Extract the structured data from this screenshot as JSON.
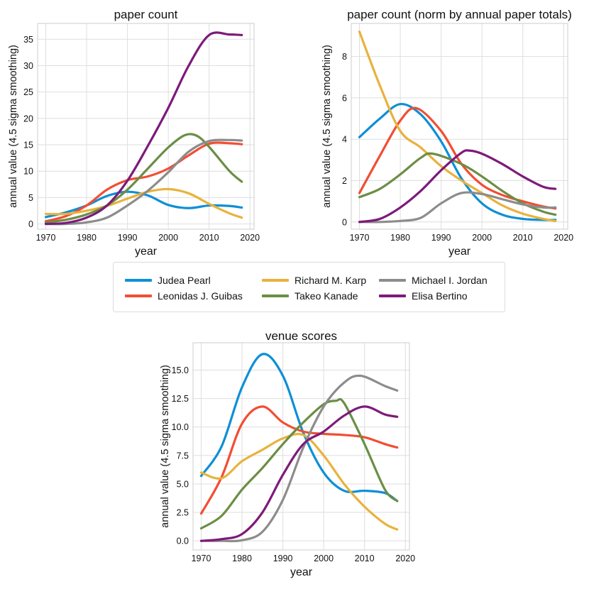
{
  "figure": {
    "legend": [
      {
        "name": "Judea Pearl",
        "color": "#0d8fd6"
      },
      {
        "name": "Leonidas J. Guibas",
        "color": "#f24d33"
      },
      {
        "name": "Richard M. Karp",
        "color": "#e8b23c"
      },
      {
        "name": "Takeo Kanade",
        "color": "#6b8e45"
      },
      {
        "name": "Michael I. Jordan",
        "color": "#8c8c8c"
      },
      {
        "name": "Elisa Bertino",
        "color": "#7d1a7a"
      }
    ]
  },
  "chart_data": [
    {
      "type": "line",
      "title": "paper count",
      "xlabel": "year",
      "ylabel": "annual value (4.5 sigma smoothing)",
      "xlim": [
        1968,
        2021
      ],
      "ylim": [
        -1,
        38
      ],
      "xticks": [
        1970,
        1980,
        1990,
        2000,
        2010,
        2020
      ],
      "yticks": [
        0,
        5,
        10,
        15,
        20,
        25,
        30,
        35
      ],
      "ytick_labels": [
        "0",
        "5",
        "10",
        "15",
        "20",
        "25",
        "30",
        "35"
      ],
      "series": [
        {
          "name": "Judea Pearl",
          "color": "#0d8fd6",
          "points": [
            [
              1970,
              1.3
            ],
            [
              1975,
              2.2
            ],
            [
              1980,
              3.5
            ],
            [
              1985,
              5.3
            ],
            [
              1990,
              6.1
            ],
            [
              1995,
              5.4
            ],
            [
              2000,
              3.6
            ],
            [
              2005,
              3.0
            ],
            [
              2010,
              3.5
            ],
            [
              2015,
              3.4
            ],
            [
              2018,
              3.1
            ]
          ]
        },
        {
          "name": "Leonidas J. Guibas",
          "color": "#f24d33",
          "points": [
            [
              1970,
              0.5
            ],
            [
              1975,
              1.5
            ],
            [
              1980,
              3.5
            ],
            [
              1985,
              6.5
            ],
            [
              1990,
              8.3
            ],
            [
              1995,
              9.0
            ],
            [
              2000,
              10.5
            ],
            [
              2005,
              13.0
            ],
            [
              2010,
              15.2
            ],
            [
              2015,
              15.3
            ],
            [
              2018,
              15.1
            ]
          ]
        },
        {
          "name": "Richard M. Karp",
          "color": "#e8b23c",
          "points": [
            [
              1970,
              1.9
            ],
            [
              1975,
              1.9
            ],
            [
              1980,
              2.5
            ],
            [
              1985,
              3.4
            ],
            [
              1990,
              4.8
            ],
            [
              1995,
              6.1
            ],
            [
              2000,
              6.6
            ],
            [
              2005,
              5.8
            ],
            [
              2010,
              3.8
            ],
            [
              2015,
              2.0
            ],
            [
              2018,
              1.2
            ]
          ]
        },
        {
          "name": "Takeo Kanade",
          "color": "#6b8e45",
          "points": [
            [
              1970,
              0.3
            ],
            [
              1975,
              0.8
            ],
            [
              1980,
              1.8
            ],
            [
              1985,
              3.5
            ],
            [
              1990,
              6.5
            ],
            [
              1995,
              10.5
            ],
            [
              2000,
              14.5
            ],
            [
              2004,
              16.8
            ],
            [
              2007,
              16.7
            ],
            [
              2010,
              14.6
            ],
            [
              2015,
              10.0
            ],
            [
              2018,
              8.0
            ]
          ]
        },
        {
          "name": "Michael I. Jordan",
          "color": "#8c8c8c",
          "points": [
            [
              1970,
              0.0
            ],
            [
              1975,
              0.0
            ],
            [
              1980,
              0.3
            ],
            [
              1985,
              1.2
            ],
            [
              1990,
              3.5
            ],
            [
              1995,
              6.3
            ],
            [
              2000,
              9.8
            ],
            [
              2005,
              13.7
            ],
            [
              2010,
              15.7
            ],
            [
              2015,
              15.9
            ],
            [
              2018,
              15.8
            ]
          ]
        },
        {
          "name": "Elisa Bertino",
          "color": "#7d1a7a",
          "points": [
            [
              1970,
              0.0
            ],
            [
              1975,
              0.2
            ],
            [
              1980,
              1.2
            ],
            [
              1985,
              3.5
            ],
            [
              1990,
              8.2
            ],
            [
              1995,
              14.8
            ],
            [
              2000,
              22.0
            ],
            [
              2005,
              30.0
            ],
            [
              2010,
              35.8
            ],
            [
              2015,
              35.9
            ],
            [
              2018,
              35.8
            ]
          ]
        }
      ]
    },
    {
      "type": "line",
      "title": "paper count (norm by annual paper totals)",
      "xlabel": "year",
      "ylabel": "annual value (4.5 sigma smoothing)",
      "xlim": [
        1968,
        2021
      ],
      "ylim": [
        -0.35,
        9.6
      ],
      "xticks": [
        1970,
        1980,
        1990,
        2000,
        2010,
        2020
      ],
      "yticks": [
        0,
        2,
        4,
        6,
        8
      ],
      "ytick_labels": [
        "0",
        "2",
        "4",
        "6",
        "8"
      ],
      "series": [
        {
          "name": "Judea Pearl",
          "color": "#0d8fd6",
          "points": [
            [
              1970,
              4.1
            ],
            [
              1975,
              5.0
            ],
            [
              1980,
              5.7
            ],
            [
              1985,
              5.2
            ],
            [
              1990,
              3.9
            ],
            [
              1995,
              2.1
            ],
            [
              2000,
              0.9
            ],
            [
              2005,
              0.35
            ],
            [
              2010,
              0.15
            ],
            [
              2015,
              0.1
            ],
            [
              2018,
              0.1
            ]
          ]
        },
        {
          "name": "Leonidas J. Guibas",
          "color": "#f24d33",
          "points": [
            [
              1970,
              1.4
            ],
            [
              1975,
              3.2
            ],
            [
              1980,
              4.9
            ],
            [
              1984,
              5.5
            ],
            [
              1990,
              4.4
            ],
            [
              1995,
              2.8
            ],
            [
              2000,
              1.8
            ],
            [
              2005,
              1.3
            ],
            [
              2010,
              1.0
            ],
            [
              2015,
              0.75
            ],
            [
              2018,
              0.65
            ]
          ]
        },
        {
          "name": "Richard M. Karp",
          "color": "#e8b23c",
          "points": [
            [
              1970,
              9.2
            ],
            [
              1975,
              6.6
            ],
            [
              1980,
              4.4
            ],
            [
              1985,
              3.6
            ],
            [
              1990,
              2.7
            ],
            [
              1995,
              2.0
            ],
            [
              2000,
              1.4
            ],
            [
              2005,
              0.8
            ],
            [
              2010,
              0.4
            ],
            [
              2015,
              0.15
            ],
            [
              2018,
              0.05
            ]
          ]
        },
        {
          "name": "Takeo Kanade",
          "color": "#6b8e45",
          "points": [
            [
              1970,
              1.2
            ],
            [
              1975,
              1.6
            ],
            [
              1980,
              2.3
            ],
            [
              1985,
              3.1
            ],
            [
              1988,
              3.3
            ],
            [
              1995,
              2.8
            ],
            [
              2000,
              2.2
            ],
            [
              2005,
              1.5
            ],
            [
              2010,
              0.9
            ],
            [
              2015,
              0.5
            ],
            [
              2018,
              0.35
            ]
          ]
        },
        {
          "name": "Michael I. Jordan",
          "color": "#8c8c8c",
          "points": [
            [
              1970,
              0.0
            ],
            [
              1975,
              0.0
            ],
            [
              1980,
              0.05
            ],
            [
              1985,
              0.2
            ],
            [
              1990,
              0.9
            ],
            [
              1995,
              1.4
            ],
            [
              2000,
              1.35
            ],
            [
              2005,
              1.1
            ],
            [
              2010,
              0.85
            ],
            [
              2015,
              0.7
            ],
            [
              2018,
              0.7
            ]
          ]
        },
        {
          "name": "Elisa Bertino",
          "color": "#7d1a7a",
          "points": [
            [
              1970,
              0.0
            ],
            [
              1975,
              0.15
            ],
            [
              1980,
              0.7
            ],
            [
              1985,
              1.5
            ],
            [
              1990,
              2.5
            ],
            [
              1995,
              3.35
            ],
            [
              1997,
              3.45
            ],
            [
              2000,
              3.3
            ],
            [
              2005,
              2.8
            ],
            [
              2010,
              2.2
            ],
            [
              2015,
              1.7
            ],
            [
              2018,
              1.6
            ]
          ]
        }
      ]
    },
    {
      "type": "line",
      "title": "venue scores",
      "xlabel": "year",
      "ylabel": "annual value (4.5 sigma smoothing)",
      "xlim": [
        1968,
        2021
      ],
      "ylim": [
        -0.8,
        17.4
      ],
      "xticks": [
        1970,
        1980,
        1990,
        2000,
        2010,
        2020
      ],
      "yticks": [
        0,
        2.5,
        5,
        7.5,
        10,
        12.5,
        15
      ],
      "ytick_labels": [
        "0.0",
        "2.5",
        "5.0",
        "7.5",
        "10.0",
        "12.5",
        "15.0"
      ],
      "series": [
        {
          "name": "Judea Pearl",
          "color": "#0d8fd6",
          "points": [
            [
              1970,
              5.7
            ],
            [
              1975,
              8.3
            ],
            [
              1980,
              13.5
            ],
            [
              1985,
              16.4
            ],
            [
              1990,
              14.5
            ],
            [
              1995,
              9.5
            ],
            [
              2000,
              6.0
            ],
            [
              2005,
              4.4
            ],
            [
              2010,
              4.4
            ],
            [
              2015,
              4.2
            ],
            [
              2018,
              3.5
            ]
          ]
        },
        {
          "name": "Leonidas J. Guibas",
          "color": "#f24d33",
          "points": [
            [
              1970,
              2.4
            ],
            [
              1975,
              5.6
            ],
            [
              1980,
              10.3
            ],
            [
              1985,
              11.8
            ],
            [
              1990,
              10.4
            ],
            [
              1995,
              9.6
            ],
            [
              2000,
              9.4
            ],
            [
              2005,
              9.3
            ],
            [
              2010,
              9.1
            ],
            [
              2015,
              8.5
            ],
            [
              2018,
              8.2
            ]
          ]
        },
        {
          "name": "Richard M. Karp",
          "color": "#e8b23c",
          "points": [
            [
              1970,
              6.0
            ],
            [
              1975,
              5.5
            ],
            [
              1980,
              7.0
            ],
            [
              1985,
              8.0
            ],
            [
              1990,
              9.0
            ],
            [
              1995,
              9.3
            ],
            [
              2000,
              7.5
            ],
            [
              2005,
              5.0
            ],
            [
              2010,
              3.0
            ],
            [
              2015,
              1.5
            ],
            [
              2018,
              1.0
            ]
          ]
        },
        {
          "name": "Takeo Kanade",
          "color": "#6b8e45",
          "points": [
            [
              1970,
              1.1
            ],
            [
              1975,
              2.2
            ],
            [
              1980,
              4.5
            ],
            [
              1985,
              6.4
            ],
            [
              1990,
              8.5
            ],
            [
              1995,
              10.4
            ],
            [
              2000,
              12.0
            ],
            [
              2003,
              12.3
            ],
            [
              2005,
              12.1
            ],
            [
              2010,
              8.5
            ],
            [
              2015,
              4.5
            ],
            [
              2018,
              3.5
            ]
          ]
        },
        {
          "name": "Michael I. Jordan",
          "color": "#8c8c8c",
          "points": [
            [
              1970,
              0.0
            ],
            [
              1975,
              0.0
            ],
            [
              1980,
              0.05
            ],
            [
              1985,
              0.8
            ],
            [
              1990,
              3.6
            ],
            [
              1995,
              8.2
            ],
            [
              2000,
              11.8
            ],
            [
              2005,
              13.9
            ],
            [
              2009,
              14.5
            ],
            [
              2015,
              13.6
            ],
            [
              2018,
              13.2
            ]
          ]
        },
        {
          "name": "Elisa Bertino",
          "color": "#7d1a7a",
          "points": [
            [
              1970,
              0.0
            ],
            [
              1975,
              0.15
            ],
            [
              1980,
              0.6
            ],
            [
              1985,
              2.5
            ],
            [
              1990,
              5.8
            ],
            [
              1995,
              8.5
            ],
            [
              2000,
              9.6
            ],
            [
              2005,
              11.0
            ],
            [
              2010,
              11.8
            ],
            [
              2015,
              11.1
            ],
            [
              2018,
              10.9
            ]
          ]
        }
      ]
    }
  ]
}
